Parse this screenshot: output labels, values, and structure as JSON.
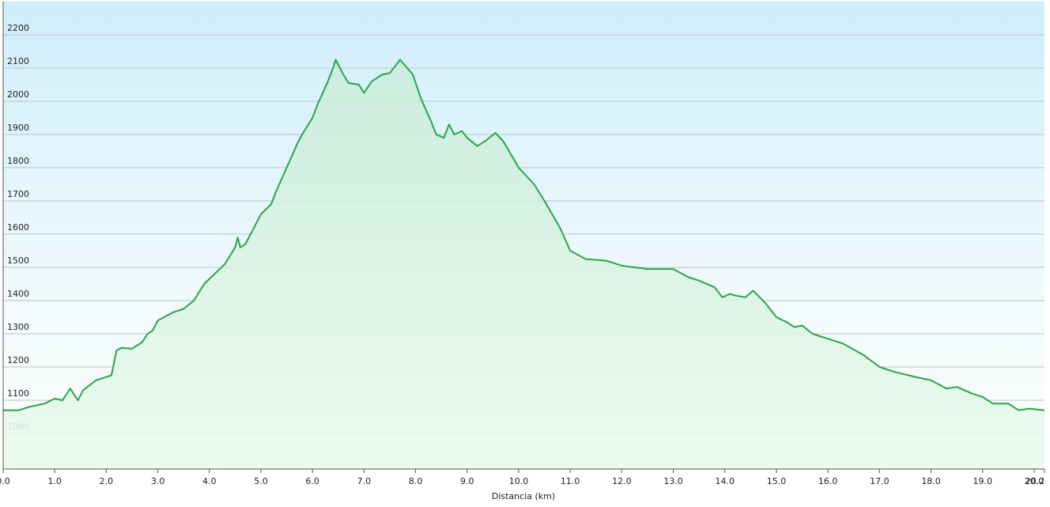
{
  "chart_data": {
    "type": "area",
    "x_label": "Distancia  (km)",
    "x": [
      0.0,
      0.3,
      0.5,
      0.8,
      1.0,
      1.15,
      1.3,
      1.45,
      1.55,
      1.8,
      2.1,
      2.2,
      2.3,
      2.5,
      2.7,
      2.8,
      2.9,
      3.0,
      3.3,
      3.5,
      3.7,
      3.9,
      4.1,
      4.3,
      4.5,
      4.55,
      4.6,
      4.7,
      4.9,
      5.0,
      5.2,
      5.3,
      5.5,
      5.7,
      5.8,
      6.0,
      6.1,
      6.3,
      6.4,
      6.45,
      6.6,
      6.7,
      6.9,
      7.0,
      7.15,
      7.35,
      7.5,
      7.7,
      7.95,
      8.1,
      8.3,
      8.4,
      8.55,
      8.65,
      8.75,
      8.9,
      9.0,
      9.2,
      9.35,
      9.55,
      9.7,
      10.0,
      10.3,
      10.5,
      10.8,
      11.0,
      11.3,
      11.7,
      12.0,
      12.5,
      13.0,
      13.3,
      13.5,
      13.8,
      13.95,
      14.1,
      14.2,
      14.4,
      14.55,
      14.8,
      15.0,
      15.2,
      15.35,
      15.5,
      15.7,
      16.0,
      16.3,
      16.7,
      17.0,
      17.3,
      17.7,
      18.0,
      18.3,
      18.5,
      18.8,
      19.0,
      19.2,
      19.5,
      19.7,
      19.9,
      20.2
    ],
    "values": [
      1070,
      1070,
      1080,
      1090,
      1105,
      1100,
      1135,
      1100,
      1130,
      1160,
      1175,
      1250,
      1258,
      1255,
      1275,
      1300,
      1310,
      1340,
      1365,
      1375,
      1400,
      1450,
      1480,
      1510,
      1560,
      1590,
      1560,
      1570,
      1630,
      1660,
      1690,
      1730,
      1800,
      1870,
      1900,
      1950,
      1990,
      2060,
      2100,
      2125,
      2080,
      2055,
      2050,
      2025,
      2060,
      2080,
      2085,
      2125,
      2080,
      2010,
      1940,
      1900,
      1890,
      1930,
      1900,
      1910,
      1890,
      1865,
      1880,
      1905,
      1880,
      1800,
      1750,
      1700,
      1620,
      1550,
      1525,
      1520,
      1505,
      1495,
      1495,
      1470,
      1460,
      1440,
      1410,
      1420,
      1415,
      1410,
      1430,
      1390,
      1350,
      1335,
      1320,
      1325,
      1300,
      1285,
      1270,
      1235,
      1200,
      1185,
      1170,
      1160,
      1135,
      1140,
      1120,
      1110,
      1090,
      1090,
      1070,
      1075,
      1070
    ],
    "color": "#2aa44a",
    "xlim": [
      0,
      20.2
    ],
    "ylim": [
      893,
      2300
    ],
    "xticks": [
      {
        "value": 0,
        "label": "0.0"
      },
      {
        "value": 1,
        "label": "1.0"
      },
      {
        "value": 2,
        "label": "2.0"
      },
      {
        "value": 3,
        "label": "3.0"
      },
      {
        "value": 4,
        "label": "4.0"
      },
      {
        "value": 5,
        "label": "5.0"
      },
      {
        "value": 6,
        "label": "6.0"
      },
      {
        "value": 7,
        "label": "7.0"
      },
      {
        "value": 8,
        "label": "8.0"
      },
      {
        "value": 9,
        "label": "9.0"
      },
      {
        "value": 10,
        "label": "10.0"
      },
      {
        "value": 11,
        "label": "11.0"
      },
      {
        "value": 12,
        "label": "12.0"
      },
      {
        "value": 13,
        "label": "13.0"
      },
      {
        "value": 14,
        "label": "14.0"
      },
      {
        "value": 15,
        "label": "15.0"
      },
      {
        "value": 16,
        "label": "16.0"
      },
      {
        "value": 17,
        "label": "17.0"
      },
      {
        "value": 18,
        "label": "18.0"
      },
      {
        "value": 19,
        "label": "19.0"
      },
      {
        "value": 20,
        "label": "20.0"
      },
      20.2
    ],
    "yticks": [
      1000,
      1100,
      1200,
      1300,
      1400,
      1500,
      1600,
      1700,
      1800,
      1900,
      2000,
      2100,
      2200
    ],
    "grid": true
  }
}
